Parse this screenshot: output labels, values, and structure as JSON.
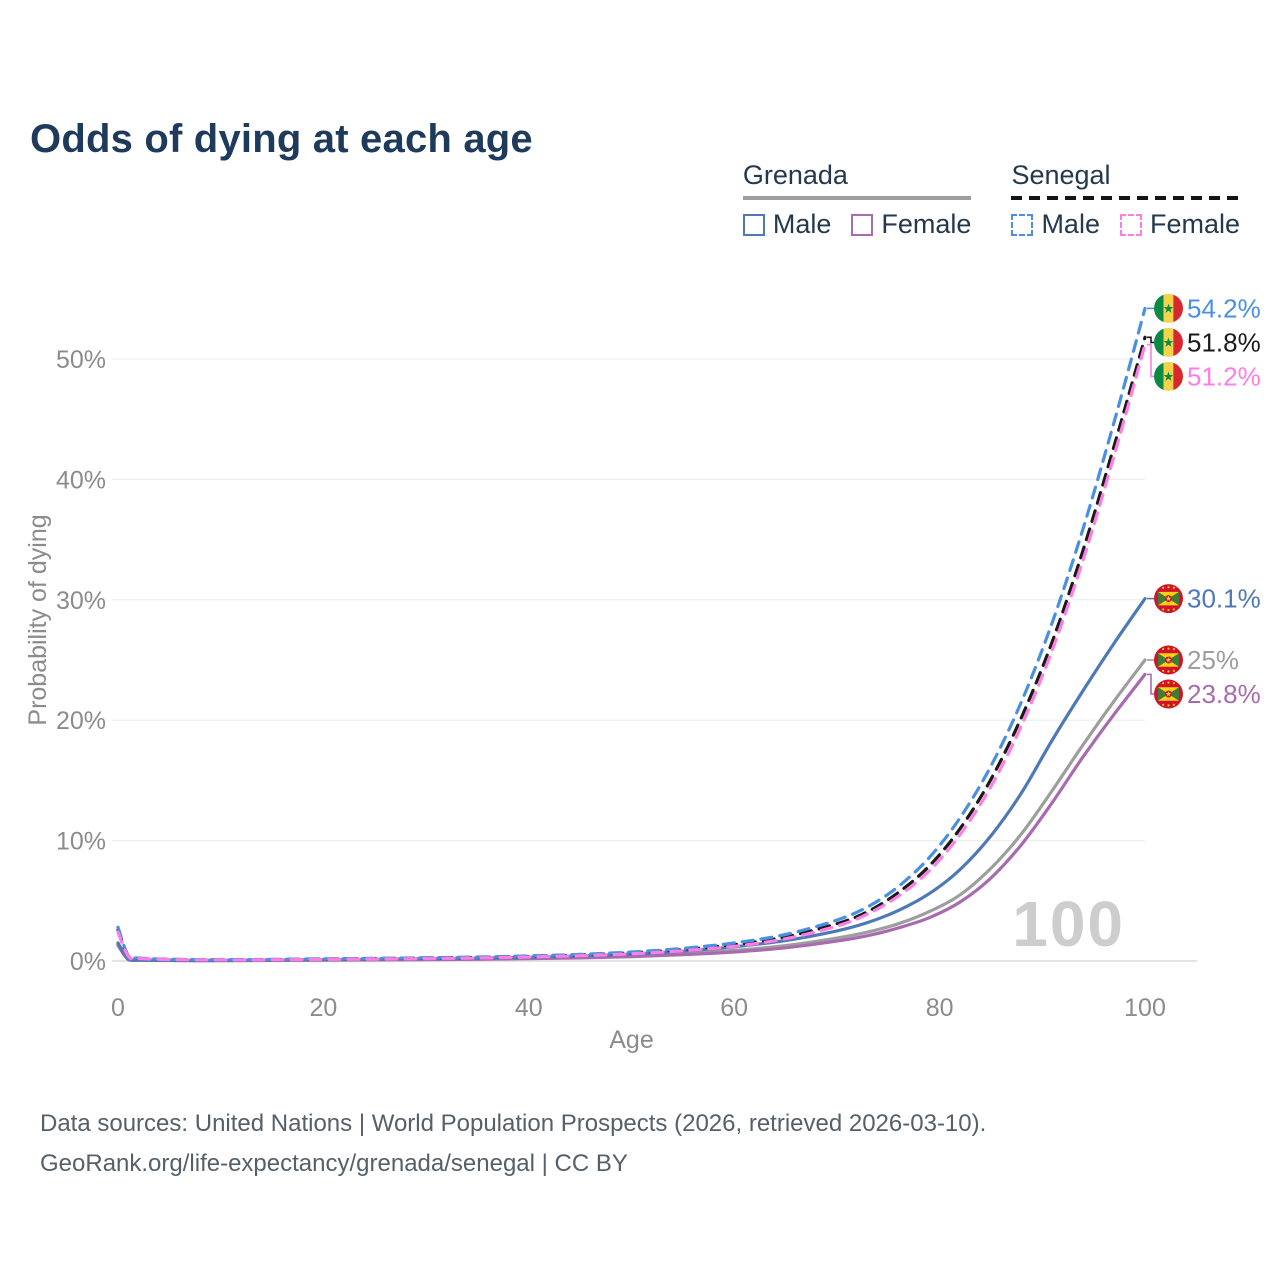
{
  "title": "Odds of dying at each age",
  "watermark": "100",
  "legend": {
    "grenada": {
      "label": "Grenada",
      "male": "Male",
      "female": "Female",
      "male_color": "#4d79b6",
      "female_color": "#a96bb0",
      "underline_color": "#9e9e9e"
    },
    "senegal": {
      "label": "Senegal",
      "male": "Male",
      "female": "Female",
      "male_color": "#4a90e2",
      "female_color": "#ff7ee3",
      "underline_color": "#141414"
    }
  },
  "footer": {
    "line1": "Data sources: United Nations | World Population Prospects (2026, retrieved 2026-03-10).",
    "line2": "GeoRank.org/life-expectancy/grenada/senegal | CC BY"
  },
  "chart_data": {
    "type": "line",
    "title": "Odds of dying at each age",
    "xlabel": "Age",
    "ylabel": "Probability of dying",
    "xlim": [
      0,
      100
    ],
    "ylim": [
      0,
      56
    ],
    "x_ticks": [
      0,
      20,
      40,
      60,
      80,
      100
    ],
    "y_ticks": [
      "0%",
      "10%",
      "20%",
      "30%",
      "40%",
      "50%"
    ],
    "grid": true,
    "legend_position": "top-right",
    "x": [
      0,
      1,
      2,
      5,
      10,
      15,
      20,
      25,
      30,
      35,
      40,
      45,
      50,
      55,
      60,
      65,
      70,
      73,
      76,
      79,
      82,
      85,
      88,
      91,
      94,
      97,
      100
    ],
    "series": [
      {
        "name": "Grenada (both sexes)",
        "slug": "grenada-both-sexes",
        "country": "Grenada",
        "color": "#9e9e9e",
        "dash": false,
        "flag": "grenada",
        "end_label": "25%",
        "values": [
          1.4,
          0.13,
          0.07,
          0.05,
          0.04,
          0.06,
          0.09,
          0.11,
          0.14,
          0.18,
          0.23,
          0.31,
          0.43,
          0.61,
          0.88,
          1.28,
          1.9,
          2.4,
          3.1,
          4.1,
          5.5,
          7.7,
          10.6,
          14.2,
          18.0,
          21.6,
          25.0
        ]
      },
      {
        "name": "Grenada Female",
        "slug": "grenada-female",
        "country": "Grenada",
        "color": "#a96bb0",
        "dash": false,
        "flag": "grenada",
        "end_label": "23.8%",
        "values": [
          1.3,
          0.12,
          0.06,
          0.04,
          0.035,
          0.05,
          0.07,
          0.09,
          0.11,
          0.14,
          0.19,
          0.26,
          0.36,
          0.52,
          0.75,
          1.1,
          1.65,
          2.1,
          2.75,
          3.6,
          4.9,
          6.9,
          9.7,
          13.2,
          17.0,
          20.5,
          23.8
        ]
      },
      {
        "name": "Grenada Male",
        "slug": "grenada-male",
        "country": "Grenada",
        "color": "#4d79b6",
        "dash": false,
        "flag": "grenada",
        "end_label": "30.1%",
        "values": [
          1.5,
          0.14,
          0.08,
          0.05,
          0.05,
          0.08,
          0.12,
          0.15,
          0.19,
          0.24,
          0.31,
          0.42,
          0.58,
          0.82,
          1.18,
          1.7,
          2.5,
          3.2,
          4.2,
          5.6,
          7.6,
          10.4,
          14.0,
          18.4,
          22.5,
          26.4,
          30.1
        ]
      },
      {
        "name": "Senegal (both sexes)",
        "slug": "senegal-both-sexes",
        "country": "Senegal",
        "color": "#1a1a1a",
        "dash": true,
        "flag": "senegal",
        "end_label": "51.8%",
        "values": [
          2.6,
          0.42,
          0.23,
          0.13,
          0.1,
          0.12,
          0.16,
          0.2,
          0.24,
          0.3,
          0.38,
          0.5,
          0.68,
          0.95,
          1.36,
          2.0,
          3.1,
          4.1,
          5.7,
          7.9,
          11.0,
          15.1,
          20.3,
          26.6,
          34.2,
          42.8,
          51.8
        ]
      },
      {
        "name": "Senegal Male",
        "slug": "senegal-male",
        "country": "Senegal",
        "color": "#4a90e2",
        "dash": true,
        "flag": "senegal",
        "end_label": "54.2%",
        "values": [
          2.8,
          0.45,
          0.25,
          0.14,
          0.11,
          0.13,
          0.18,
          0.22,
          0.27,
          0.33,
          0.42,
          0.55,
          0.75,
          1.05,
          1.5,
          2.2,
          3.4,
          4.5,
          6.2,
          8.6,
          11.9,
          16.2,
          21.6,
          28.2,
          36.0,
          44.8,
          54.2
        ]
      },
      {
        "name": "Senegal Female",
        "slug": "senegal-female",
        "country": "Senegal",
        "color": "#ff7ee3",
        "dash": true,
        "flag": "senegal",
        "end_label": "51.2%",
        "values": [
          2.4,
          0.4,
          0.21,
          0.12,
          0.09,
          0.1,
          0.13,
          0.16,
          0.2,
          0.25,
          0.33,
          0.44,
          0.6,
          0.85,
          1.22,
          1.85,
          2.9,
          3.9,
          5.4,
          7.5,
          10.5,
          14.5,
          19.6,
          25.9,
          33.4,
          42.0,
          51.2
        ]
      }
    ]
  }
}
